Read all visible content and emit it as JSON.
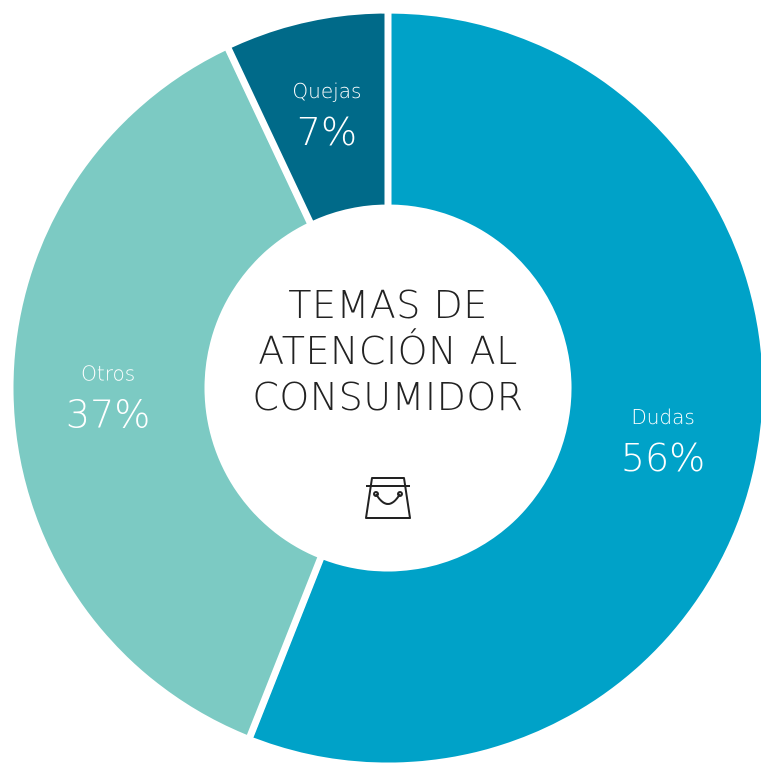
{
  "chart_data": {
    "type": "donut",
    "title": "TEMAS DE ATENCIÓN AL CONSUMIDOR",
    "categories": [
      "Dudas",
      "Otros",
      "Quejas"
    ],
    "values": [
      56,
      37,
      7
    ],
    "value_labels": [
      "56%",
      "37%",
      "7%"
    ],
    "colors": [
      "#00a2c8",
      "#7ccac3",
      "#006a89"
    ]
  }
}
